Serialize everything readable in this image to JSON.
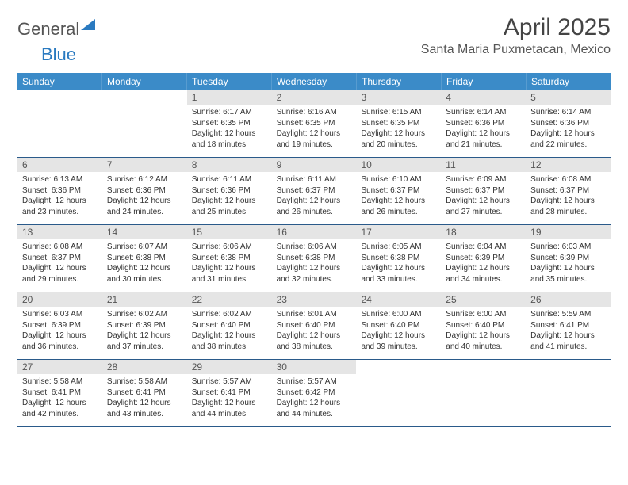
{
  "logo": {
    "general": "General",
    "blue": "Blue"
  },
  "header": {
    "title": "April 2025",
    "location": "Santa Maria Puxmetacan, Mexico"
  },
  "colors": {
    "brand_blue": "#3b8bc8",
    "row_divider": "#2a5a8a",
    "daynum_bg": "#e5e5e5",
    "text": "#333333"
  },
  "weekdays": [
    "Sunday",
    "Monday",
    "Tuesday",
    "Wednesday",
    "Thursday",
    "Friday",
    "Saturday"
  ],
  "weeks": [
    [
      {
        "blank": true
      },
      {
        "blank": true
      },
      {
        "num": "1",
        "sunrise": "6:17 AM",
        "sunset": "6:35 PM",
        "daylight": "12 hours and 18 minutes."
      },
      {
        "num": "2",
        "sunrise": "6:16 AM",
        "sunset": "6:35 PM",
        "daylight": "12 hours and 19 minutes."
      },
      {
        "num": "3",
        "sunrise": "6:15 AM",
        "sunset": "6:35 PM",
        "daylight": "12 hours and 20 minutes."
      },
      {
        "num": "4",
        "sunrise": "6:14 AM",
        "sunset": "6:36 PM",
        "daylight": "12 hours and 21 minutes."
      },
      {
        "num": "5",
        "sunrise": "6:14 AM",
        "sunset": "6:36 PM",
        "daylight": "12 hours and 22 minutes."
      }
    ],
    [
      {
        "num": "6",
        "sunrise": "6:13 AM",
        "sunset": "6:36 PM",
        "daylight": "12 hours and 23 minutes."
      },
      {
        "num": "7",
        "sunrise": "6:12 AM",
        "sunset": "6:36 PM",
        "daylight": "12 hours and 24 minutes."
      },
      {
        "num": "8",
        "sunrise": "6:11 AM",
        "sunset": "6:36 PM",
        "daylight": "12 hours and 25 minutes."
      },
      {
        "num": "9",
        "sunrise": "6:11 AM",
        "sunset": "6:37 PM",
        "daylight": "12 hours and 26 minutes."
      },
      {
        "num": "10",
        "sunrise": "6:10 AM",
        "sunset": "6:37 PM",
        "daylight": "12 hours and 26 minutes."
      },
      {
        "num": "11",
        "sunrise": "6:09 AM",
        "sunset": "6:37 PM",
        "daylight": "12 hours and 27 minutes."
      },
      {
        "num": "12",
        "sunrise": "6:08 AM",
        "sunset": "6:37 PM",
        "daylight": "12 hours and 28 minutes."
      }
    ],
    [
      {
        "num": "13",
        "sunrise": "6:08 AM",
        "sunset": "6:37 PM",
        "daylight": "12 hours and 29 minutes."
      },
      {
        "num": "14",
        "sunrise": "6:07 AM",
        "sunset": "6:38 PM",
        "daylight": "12 hours and 30 minutes."
      },
      {
        "num": "15",
        "sunrise": "6:06 AM",
        "sunset": "6:38 PM",
        "daylight": "12 hours and 31 minutes."
      },
      {
        "num": "16",
        "sunrise": "6:06 AM",
        "sunset": "6:38 PM",
        "daylight": "12 hours and 32 minutes."
      },
      {
        "num": "17",
        "sunrise": "6:05 AM",
        "sunset": "6:38 PM",
        "daylight": "12 hours and 33 minutes."
      },
      {
        "num": "18",
        "sunrise": "6:04 AM",
        "sunset": "6:39 PM",
        "daylight": "12 hours and 34 minutes."
      },
      {
        "num": "19",
        "sunrise": "6:03 AM",
        "sunset": "6:39 PM",
        "daylight": "12 hours and 35 minutes."
      }
    ],
    [
      {
        "num": "20",
        "sunrise": "6:03 AM",
        "sunset": "6:39 PM",
        "daylight": "12 hours and 36 minutes."
      },
      {
        "num": "21",
        "sunrise": "6:02 AM",
        "sunset": "6:39 PM",
        "daylight": "12 hours and 37 minutes."
      },
      {
        "num": "22",
        "sunrise": "6:02 AM",
        "sunset": "6:40 PM",
        "daylight": "12 hours and 38 minutes."
      },
      {
        "num": "23",
        "sunrise": "6:01 AM",
        "sunset": "6:40 PM",
        "daylight": "12 hours and 38 minutes."
      },
      {
        "num": "24",
        "sunrise": "6:00 AM",
        "sunset": "6:40 PM",
        "daylight": "12 hours and 39 minutes."
      },
      {
        "num": "25",
        "sunrise": "6:00 AM",
        "sunset": "6:40 PM",
        "daylight": "12 hours and 40 minutes."
      },
      {
        "num": "26",
        "sunrise": "5:59 AM",
        "sunset": "6:41 PM",
        "daylight": "12 hours and 41 minutes."
      }
    ],
    [
      {
        "num": "27",
        "sunrise": "5:58 AM",
        "sunset": "6:41 PM",
        "daylight": "12 hours and 42 minutes."
      },
      {
        "num": "28",
        "sunrise": "5:58 AM",
        "sunset": "6:41 PM",
        "daylight": "12 hours and 43 minutes."
      },
      {
        "num": "29",
        "sunrise": "5:57 AM",
        "sunset": "6:41 PM",
        "daylight": "12 hours and 44 minutes."
      },
      {
        "num": "30",
        "sunrise": "5:57 AM",
        "sunset": "6:42 PM",
        "daylight": "12 hours and 44 minutes."
      },
      {
        "blank": true
      },
      {
        "blank": true
      },
      {
        "blank": true
      }
    ]
  ],
  "labels": {
    "sunrise": "Sunrise:",
    "sunset": "Sunset:",
    "daylight": "Daylight:"
  }
}
